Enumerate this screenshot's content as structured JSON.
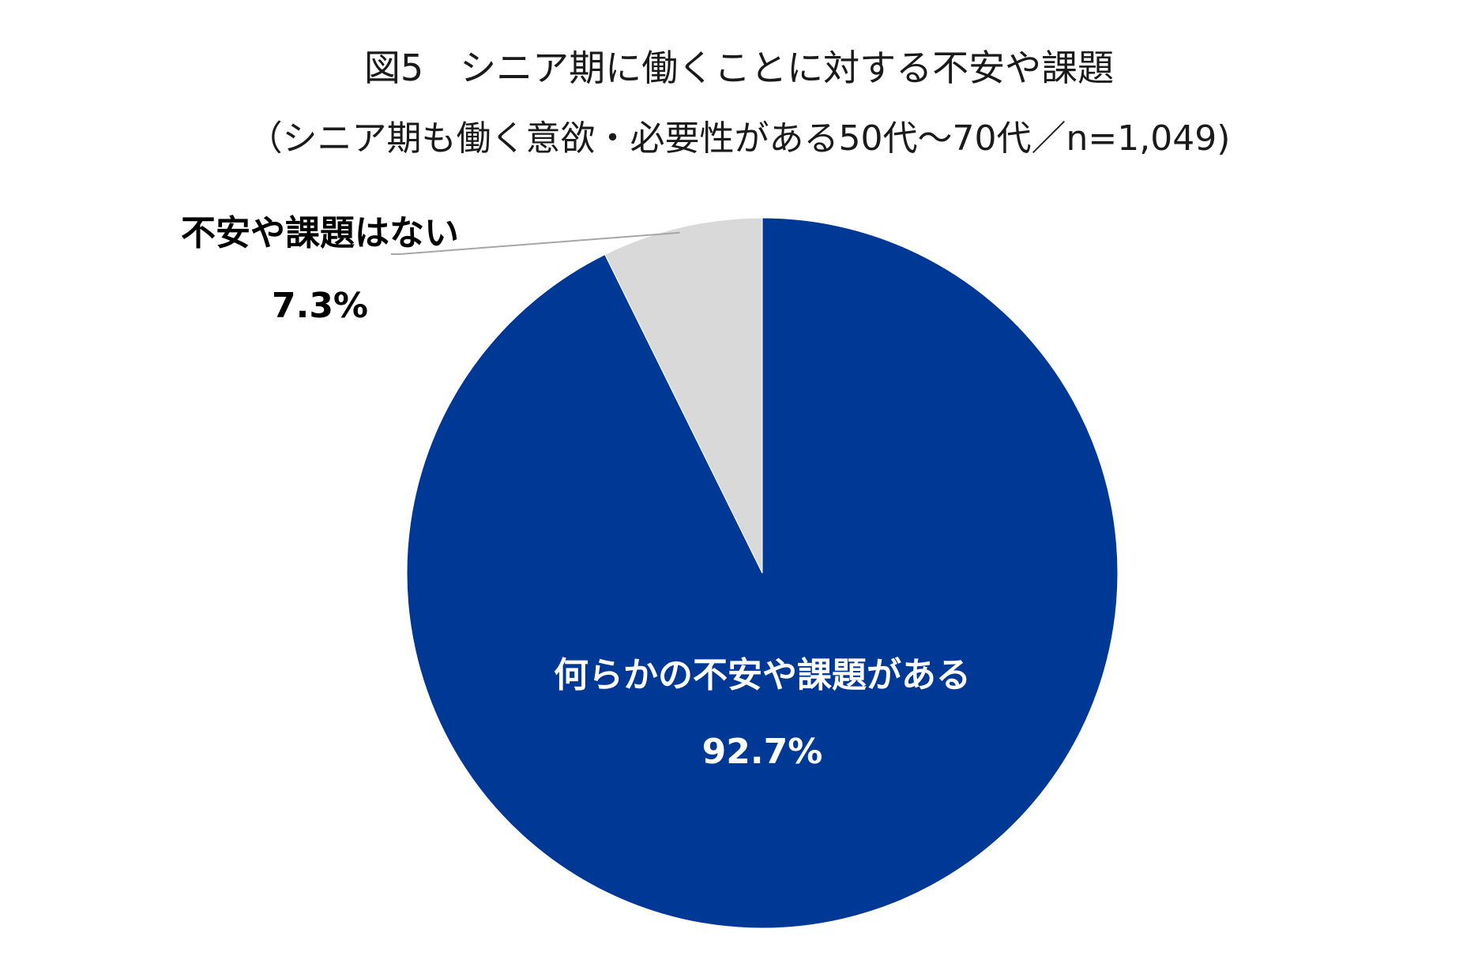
{
  "chart_data": {
    "type": "pie",
    "title": "図5　シニア期に働くことに対する不安や課題",
    "subtitle": "（シニア期も働く意欲・必要性がある50代～70代／n=1,049)",
    "slices": [
      {
        "label": "何らかの不安や課題がある",
        "value": 92.7,
        "value_label": "92.7%",
        "color": "#003896",
        "label_color": "#ffffff"
      },
      {
        "label": "不安や課題はない",
        "value": 7.3,
        "value_label": "7.3%",
        "color": "#d9d9d9",
        "label_color": "#000000"
      }
    ],
    "start_angle_deg": 0,
    "direction": "clockwise",
    "legend": "none"
  }
}
